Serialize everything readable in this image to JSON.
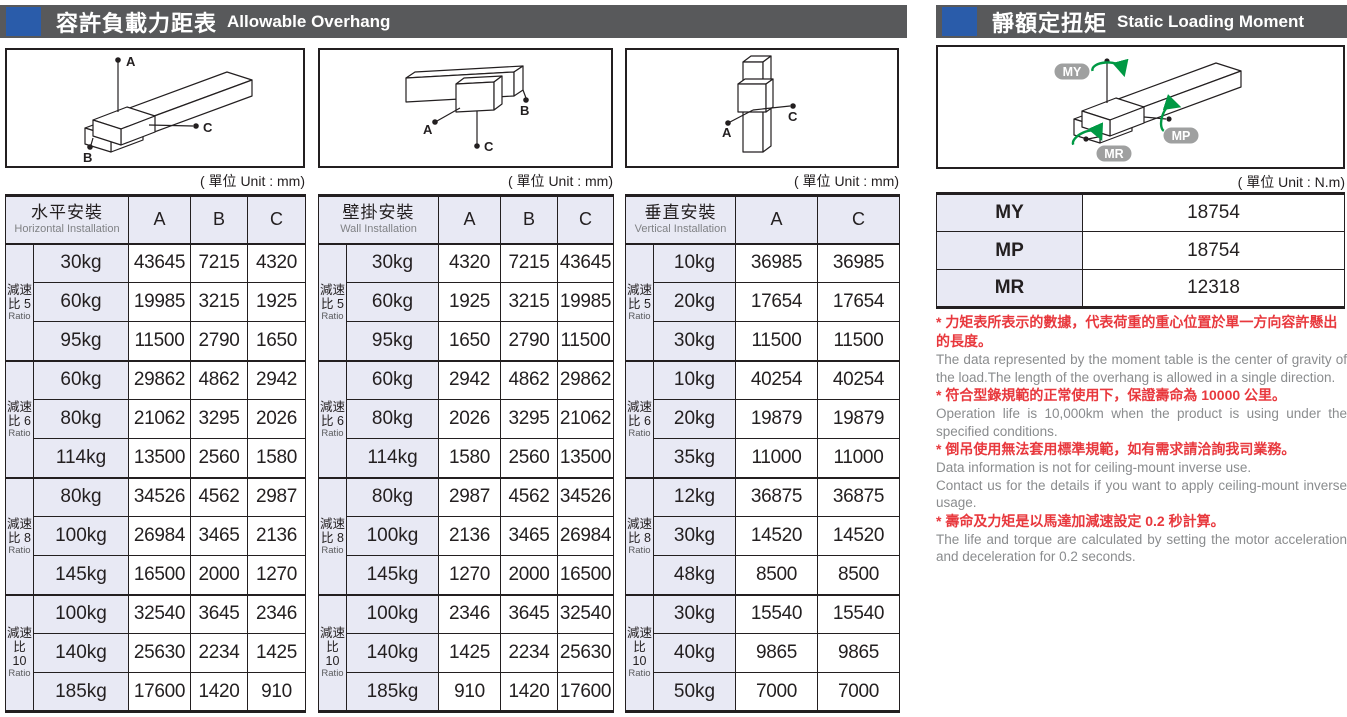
{
  "colors": {
    "accent_blue": "#2A5CAA",
    "bar_gray": "#58595B",
    "cell_lavender": "#E8E9F4",
    "note_red": "#E8383D",
    "note_gray": "#8A8C8E",
    "moment_green": "#009944",
    "badge_gray": "#9FA0A0"
  },
  "left_section": {
    "title_zh": "容許負載力距表",
    "title_en": "Allowable Overhang",
    "unit_label": "( 單位 Unit : mm)",
    "point_labels": {
      "a": "A",
      "b": "B",
      "c": "C"
    },
    "tables": [
      {
        "name_zh": "水平安裝",
        "name_en": "Horizontal Installation",
        "columns": [
          "A",
          "B",
          "C"
        ],
        "groups": [
          {
            "ratio_lines": [
              "減速",
              "比 5"
            ],
            "ratio_en": "Ratio",
            "rows": [
              {
                "load": "30kg",
                "values": [
                  43645,
                  7215,
                  4320
                ]
              },
              {
                "load": "60kg",
                "values": [
                  19985,
                  3215,
                  1925
                ]
              },
              {
                "load": "95kg",
                "values": [
                  11500,
                  2790,
                  1650
                ]
              }
            ]
          },
          {
            "ratio_lines": [
              "減速",
              "比 6"
            ],
            "ratio_en": "Ratio",
            "rows": [
              {
                "load": "60kg",
                "values": [
                  29862,
                  4862,
                  2942
                ]
              },
              {
                "load": "80kg",
                "values": [
                  21062,
                  3295,
                  2026
                ]
              },
              {
                "load": "114kg",
                "values": [
                  13500,
                  2560,
                  1580
                ]
              }
            ]
          },
          {
            "ratio_lines": [
              "減速",
              "比 8"
            ],
            "ratio_en": "Ratio",
            "rows": [
              {
                "load": "80kg",
                "values": [
                  34526,
                  4562,
                  2987
                ]
              },
              {
                "load": "100kg",
                "values": [
                  26984,
                  3465,
                  2136
                ]
              },
              {
                "load": "145kg",
                "values": [
                  16500,
                  2000,
                  1270
                ]
              }
            ]
          },
          {
            "ratio_lines": [
              "減速",
              "比",
              "10"
            ],
            "ratio_en": "Ratio",
            "rows": [
              {
                "load": "100kg",
                "values": [
                  32540,
                  3645,
                  2346
                ]
              },
              {
                "load": "140kg",
                "values": [
                  25630,
                  2234,
                  1425
                ]
              },
              {
                "load": "185kg",
                "values": [
                  17600,
                  1420,
                  910
                ]
              }
            ]
          }
        ]
      },
      {
        "name_zh": "壁掛安裝",
        "name_en": "Wall Installation",
        "columns": [
          "A",
          "B",
          "C"
        ],
        "groups": [
          {
            "ratio_lines": [
              "減速",
              "比 5"
            ],
            "ratio_en": "Ratio",
            "rows": [
              {
                "load": "30kg",
                "values": [
                  4320,
                  7215,
                  43645
                ]
              },
              {
                "load": "60kg",
                "values": [
                  1925,
                  3215,
                  19985
                ]
              },
              {
                "load": "95kg",
                "values": [
                  1650,
                  2790,
                  11500
                ]
              }
            ]
          },
          {
            "ratio_lines": [
              "減速",
              "比 6"
            ],
            "ratio_en": "Ratio",
            "rows": [
              {
                "load": "60kg",
                "values": [
                  2942,
                  4862,
                  29862
                ]
              },
              {
                "load": "80kg",
                "values": [
                  2026,
                  3295,
                  21062
                ]
              },
              {
                "load": "114kg",
                "values": [
                  1580,
                  2560,
                  13500
                ]
              }
            ]
          },
          {
            "ratio_lines": [
              "減速",
              "比 8"
            ],
            "ratio_en": "Ratio",
            "rows": [
              {
                "load": "80kg",
                "values": [
                  2987,
                  4562,
                  34526
                ]
              },
              {
                "load": "100kg",
                "values": [
                  2136,
                  3465,
                  26984
                ]
              },
              {
                "load": "145kg",
                "values": [
                  1270,
                  2000,
                  16500
                ]
              }
            ]
          },
          {
            "ratio_lines": [
              "減速",
              "比",
              "10"
            ],
            "ratio_en": "Ratio",
            "rows": [
              {
                "load": "100kg",
                "values": [
                  2346,
                  3645,
                  32540
                ]
              },
              {
                "load": "140kg",
                "values": [
                  1425,
                  2234,
                  25630
                ]
              },
              {
                "load": "185kg",
                "values": [
                  910,
                  1420,
                  17600
                ]
              }
            ]
          }
        ]
      },
      {
        "name_zh": "垂直安裝",
        "name_en": "Vertical Installation",
        "columns": [
          "A",
          "C"
        ],
        "groups": [
          {
            "ratio_lines": [
              "減速",
              "比 5"
            ],
            "ratio_en": "Ratio",
            "rows": [
              {
                "load": "10kg",
                "values": [
                  36985,
                  36985
                ]
              },
              {
                "load": "20kg",
                "values": [
                  17654,
                  17654
                ]
              },
              {
                "load": "30kg",
                "values": [
                  11500,
                  11500
                ]
              }
            ]
          },
          {
            "ratio_lines": [
              "減速",
              "比 6"
            ],
            "ratio_en": "Ratio",
            "rows": [
              {
                "load": "10kg",
                "values": [
                  40254,
                  40254
                ]
              },
              {
                "load": "20kg",
                "values": [
                  19879,
                  19879
                ]
              },
              {
                "load": "35kg",
                "values": [
                  11000,
                  11000
                ]
              }
            ]
          },
          {
            "ratio_lines": [
              "減速",
              "比 8"
            ],
            "ratio_en": "Ratio",
            "rows": [
              {
                "load": "12kg",
                "values": [
                  36875,
                  36875
                ]
              },
              {
                "load": "30kg",
                "values": [
                  14520,
                  14520
                ]
              },
              {
                "load": "48kg",
                "values": [
                  8500,
                  8500
                ]
              }
            ]
          },
          {
            "ratio_lines": [
              "減速",
              "比",
              "10"
            ],
            "ratio_en": "Ratio",
            "rows": [
              {
                "load": "30kg",
                "values": [
                  15540,
                  15540
                ]
              },
              {
                "load": "40kg",
                "values": [
                  9865,
                  9865
                ]
              },
              {
                "load": "50kg",
                "values": [
                  7000,
                  7000
                ]
              }
            ]
          }
        ]
      }
    ]
  },
  "right_section": {
    "title_zh": "靜額定扭矩",
    "title_en": "Static Loading Moment",
    "unit_label": "( 單位 Unit : N.m)",
    "moment_labels": [
      "MY",
      "MP",
      "MR"
    ],
    "moment_table": [
      {
        "label": "MY",
        "value": 18754
      },
      {
        "label": "MP",
        "value": 18754
      },
      {
        "label": "MR",
        "value": 12318
      }
    ],
    "notes": [
      {
        "zh": "* 力矩表所表示的數據，代表荷重的重心位置於單一方向容許懸出的長度。",
        "en": [
          "The data represented by the moment table is the center of gravity of the load.The length of the overhang is allowed in a single direction."
        ]
      },
      {
        "zh": "* 符合型錄規範的正常使用下，保證壽命為 10000 公里。",
        "en": [
          "Operation life is 10,000km when the product is using under the specified conditions."
        ]
      },
      {
        "zh": "* 倒吊使用無法套用標準規範，如有需求請洽詢我司業務。",
        "en": [
          "Data information is not for ceiling-mount inverse use.",
          "Contact us for the details if you want to apply ceiling-mount inverse usage."
        ]
      },
      {
        "zh": "* 壽命及力矩是以馬達加減速設定 0.2 秒計算。",
        "en": [
          "The life and torque are calculated by setting the motor acceleration and deceleration for 0.2 seconds."
        ]
      }
    ]
  }
}
